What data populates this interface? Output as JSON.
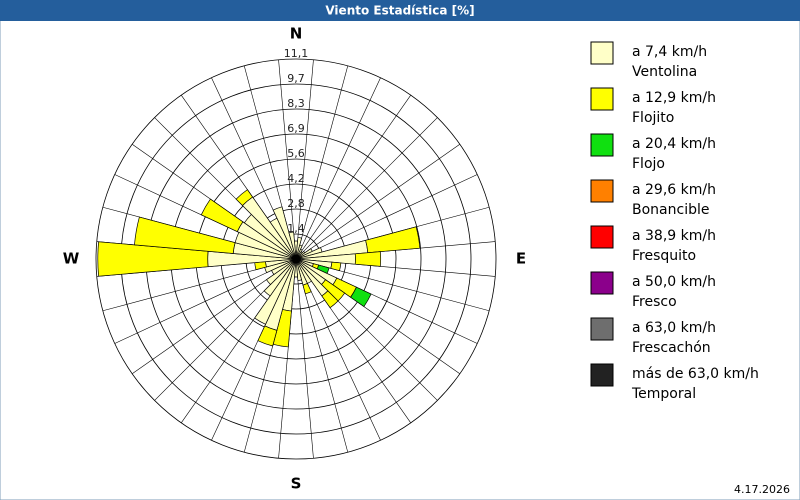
{
  "chart_data": {
    "type": "windrose",
    "title": "Viento Estadística [%]",
    "date": "4.17.2026",
    "categories": [
      "N",
      null,
      null,
      null,
      null,
      null,
      null,
      null,
      null,
      "E",
      null,
      null,
      null,
      null,
      null,
      null,
      null,
      null,
      "S",
      null,
      null,
      null,
      null,
      null,
      null,
      null,
      null,
      "W",
      null,
      null,
      null,
      null,
      null,
      null,
      null,
      null
    ],
    "rlim": [
      0,
      11.1
    ],
    "rticks": [
      {
        "value": 1.3875,
        "label": "1,4"
      },
      {
        "value": 2.775,
        "label": "2,8"
      },
      {
        "value": 4.1625,
        "label": "4,2"
      },
      {
        "value": 5.55,
        "label": "5,6"
      },
      {
        "value": 6.9375,
        "label": "6,9"
      },
      {
        "value": 8.325,
        "label": "8,3"
      },
      {
        "value": 9.7125,
        "label": "9,7"
      },
      {
        "value": 11.1,
        "label": "11,1"
      }
    ],
    "grid": true,
    "series": [
      {
        "name": "Ventolina",
        "range": "a 7,4 km/h",
        "color": "#ffffc8",
        "values": [
          1.0,
          1.2,
          0.8,
          0.6,
          0.5,
          0.6,
          1.0,
          1.5,
          4.0,
          3.3,
          2.0,
          1.0,
          2.5,
          2.0,
          2.5,
          1.5,
          1.5,
          1.2,
          1.0,
          2.9,
          4.1,
          4.0,
          2.5,
          2.0,
          1.5,
          1.8,
          1.7,
          4.9,
          3.5,
          3.5,
          3.6,
          3.5,
          4.2,
          2.5,
          3.0,
          1.5
        ]
      },
      {
        "name": "Flojito",
        "range": "a 12,9 km/h",
        "color": "#ffff00",
        "values": [
          0,
          0,
          0,
          0,
          0,
          0,
          0,
          0,
          2.9,
          1.4,
          0.5,
          0.3,
          1.2,
          1.3,
          0.8,
          0,
          0.5,
          0,
          0,
          2.0,
          0.9,
          0,
          0,
          0,
          0,
          0,
          0.6,
          6.1,
          5.5,
          0,
          2.2,
          0,
          0.5,
          0,
          0,
          0
        ]
      },
      {
        "name": "Flojo",
        "range": "a 20,4 km/h",
        "color": "#10e010",
        "values": [
          0,
          0,
          0,
          0,
          0,
          0,
          0,
          0,
          0,
          0,
          0,
          0.6,
          0.9,
          0,
          0,
          0,
          0,
          0,
          0,
          0,
          0,
          0,
          0,
          0,
          0,
          0,
          0,
          0,
          0,
          0,
          0,
          0,
          0,
          0,
          0,
          0
        ]
      },
      {
        "name": "Bonancible",
        "range": "a 29,6 km/h",
        "color": "#ff8000",
        "values": [
          0,
          0,
          0,
          0,
          0,
          0,
          0,
          0,
          0,
          0,
          0,
          0,
          0,
          0,
          0,
          0,
          0,
          0,
          0,
          0,
          0,
          0,
          0,
          0,
          0,
          0,
          0,
          0,
          0,
          0,
          0,
          0,
          0,
          0,
          0,
          0
        ]
      },
      {
        "name": "Fresquito",
        "range": "a 38,9 km/h",
        "color": "#ff0000",
        "values": [
          0,
          0,
          0,
          0,
          0,
          0,
          0,
          0,
          0,
          0,
          0,
          0,
          0,
          0,
          0,
          0,
          0,
          0,
          0,
          0,
          0,
          0,
          0,
          0,
          0,
          0,
          0,
          0,
          0,
          0,
          0,
          0,
          0,
          0,
          0,
          0
        ]
      },
      {
        "name": "Fresco",
        "range": "a 50,0 km/h",
        "color": "#8b008b",
        "values": [
          0,
          0,
          0,
          0,
          0,
          0,
          0,
          0,
          0,
          0,
          0,
          0,
          0,
          0,
          0,
          0,
          0,
          0,
          0,
          0,
          0,
          0,
          0,
          0,
          0,
          0,
          0,
          0,
          0,
          0,
          0,
          0,
          0,
          0,
          0,
          0
        ]
      },
      {
        "name": "Frescachón",
        "range": "a 63,0 km/h",
        "color": "#6e6e6e",
        "values": [
          0,
          0,
          0,
          0,
          0,
          0,
          0,
          0,
          0,
          0,
          0,
          0,
          0,
          0,
          0,
          0,
          0,
          0,
          0,
          0,
          0,
          0,
          0,
          0,
          0,
          0,
          0,
          0,
          0,
          0,
          0,
          0,
          0,
          0,
          0,
          0
        ]
      },
      {
        "name": "Temporal",
        "range": "más de 63,0 km/h",
        "color": "#222222",
        "values": [
          0,
          0,
          0,
          0,
          0,
          0,
          0,
          0,
          0,
          0,
          0,
          0,
          0,
          0,
          0,
          0,
          0,
          0,
          0,
          0,
          0,
          0,
          0,
          0,
          0,
          0,
          0,
          0,
          0,
          0,
          0,
          0,
          0,
          0,
          0,
          0
        ]
      }
    ]
  }
}
